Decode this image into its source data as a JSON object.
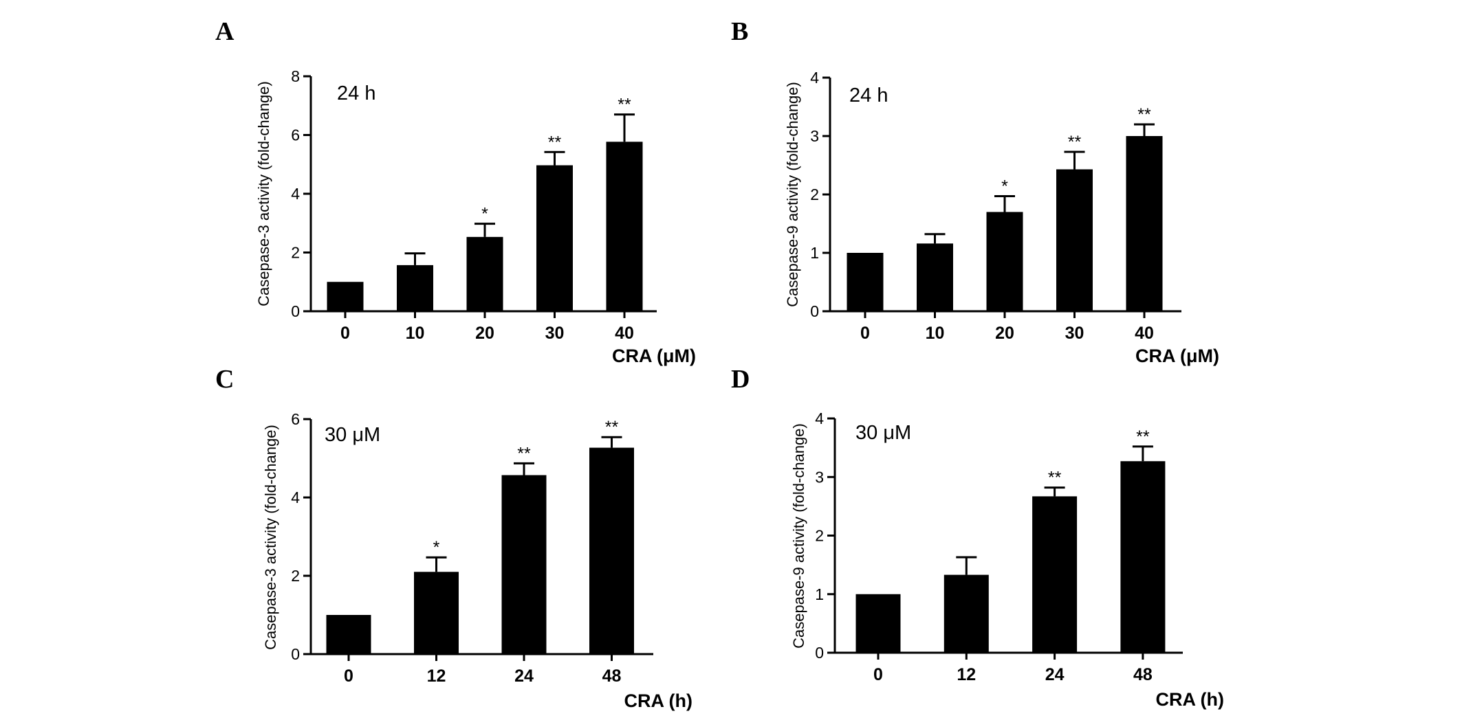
{
  "chart_data": [
    {
      "type": "bar",
      "panel": "A",
      "annotation": "24 h",
      "xlabel": "CRA (μM)",
      "ylabel": "Casepase-3 activity (fold-change)",
      "categories": [
        "0",
        "10",
        "20",
        "30",
        "40"
      ],
      "values": [
        1.0,
        1.57,
        2.53,
        4.97,
        5.77
      ],
      "errors": [
        0.0,
        0.4,
        0.45,
        0.45,
        0.93
      ],
      "significance": [
        "",
        "",
        "*",
        "**",
        "**"
      ],
      "ylim": [
        0,
        8
      ],
      "yticks": [
        "0",
        "2",
        "4",
        "6",
        "8"
      ],
      "bar_color": "#000000"
    },
    {
      "type": "bar",
      "panel": "B",
      "annotation": "24 h",
      "xlabel": "CRA (μM)",
      "ylabel": "Casepase-9 activity (fold-change)",
      "categories": [
        "0",
        "10",
        "20",
        "30",
        "40"
      ],
      "values": [
        1.0,
        1.16,
        1.7,
        2.43,
        3.0
      ],
      "errors": [
        0.0,
        0.16,
        0.27,
        0.3,
        0.2
      ],
      "significance": [
        "",
        "",
        "*",
        "**",
        "**"
      ],
      "ylim": [
        0,
        4
      ],
      "yticks": [
        "0",
        "1",
        "2",
        "3",
        "4"
      ],
      "bar_color": "#000000"
    },
    {
      "type": "bar",
      "panel": "C",
      "annotation": "30 μM",
      "xlabel": "CRA (h)",
      "ylabel": "Casepase-3 activity (fold-change)",
      "categories": [
        "0",
        "12",
        "24",
        "48"
      ],
      "values": [
        1.0,
        2.1,
        4.57,
        5.27
      ],
      "errors": [
        0.0,
        0.37,
        0.3,
        0.27
      ],
      "significance": [
        "",
        "*",
        "**",
        "**"
      ],
      "ylim": [
        0,
        6
      ],
      "yticks": [
        "0",
        "2",
        "4",
        "6"
      ],
      "bar_color": "#000000"
    },
    {
      "type": "bar",
      "panel": "D",
      "annotation": "30 μM",
      "xlabel": "CRA (h)",
      "ylabel": "Casepase-9 activity (fold-change)",
      "categories": [
        "0",
        "12",
        "24",
        "48"
      ],
      "values": [
        1.0,
        1.33,
        2.67,
        3.27
      ],
      "errors": [
        0.0,
        0.3,
        0.15,
        0.25
      ],
      "significance": [
        "",
        "",
        "**",
        "**"
      ],
      "ylim": [
        0,
        4
      ],
      "yticks": [
        "0",
        "1",
        "2",
        "3",
        "4"
      ],
      "bar_color": "#000000"
    }
  ]
}
